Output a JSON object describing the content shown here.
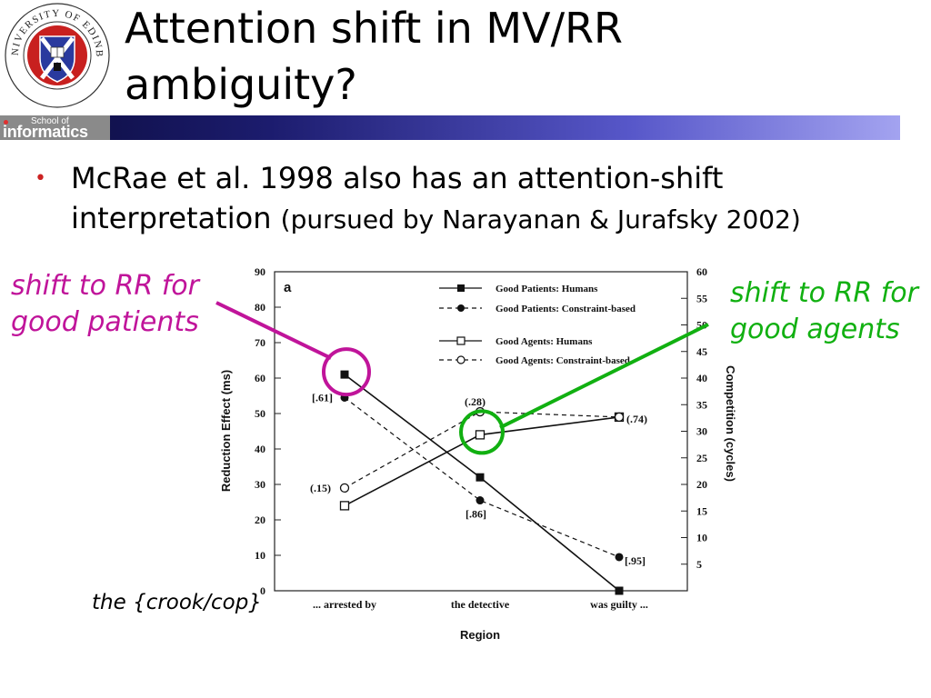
{
  "slide": {
    "title": "Attention shift in MV/RR ambiguity?",
    "logo_text": "THE UNIVERSITY OF EDINBURGH",
    "school_small": "School of",
    "school_big": "informatics",
    "bullet_main": "McRae et al. 1998 also has an attention-shift interpretation",
    "bullet_aside": "(pursued by Narayanan & Jurafsky 2002)",
    "annotation_left": [
      "shift to RR for",
      "good patients"
    ],
    "annotation_right": [
      "shift to RR for",
      "good agents"
    ],
    "sentence_frame": "the {crook/cop}",
    "colors": {
      "left_annotation": "#c0149a",
      "right_annotation": "#11b011",
      "bullet": "#cc2222"
    }
  },
  "chart_data": {
    "type": "line",
    "panel_label": "a",
    "categories": [
      "... arrested  by",
      "the  detective",
      "was  guilty  ..."
    ],
    "xlabel": "Region",
    "ylabel": "Reduction Effect (ms)",
    "y2label": "Competition (cycles)",
    "ylim": [
      0,
      90
    ],
    "yticks": [
      0,
      10,
      20,
      30,
      40,
      50,
      60,
      70,
      80,
      90
    ],
    "y2lim": [
      0,
      60
    ],
    "y2ticks": [
      5,
      10,
      15,
      20,
      25,
      30,
      35,
      40,
      45,
      50,
      55,
      60
    ],
    "legend_position": "top-right",
    "series": [
      {
        "name": "Good  Patients:  Humans",
        "axis": "left",
        "style": "solid",
        "marker": "filled-square",
        "values": [
          61,
          32,
          0
        ]
      },
      {
        "name": "Good  Patients:  Constraint-based",
        "axis": "left",
        "style": "dashed",
        "marker": "filled-circle",
        "values": [
          54.5,
          25.5,
          9.5
        ],
        "labels": [
          "[.61]",
          "[.86]",
          "[.95]"
        ]
      },
      {
        "name": "Good  Agents:  Humans",
        "axis": "left",
        "style": "solid",
        "marker": "open-square",
        "values": [
          24,
          44,
          49
        ]
      },
      {
        "name": "Good  Agents:  Constraint-based",
        "axis": "left",
        "style": "dashed",
        "marker": "open-circle",
        "values": [
          29,
          50.5,
          49
        ],
        "labels": [
          "(.15)",
          "(.28)",
          "(.74)"
        ]
      }
    ],
    "highlight_circles": [
      {
        "series": 0,
        "point": 0,
        "color": "#c0149a"
      },
      {
        "series": 2,
        "point": 1,
        "color": "#11b011"
      }
    ]
  }
}
